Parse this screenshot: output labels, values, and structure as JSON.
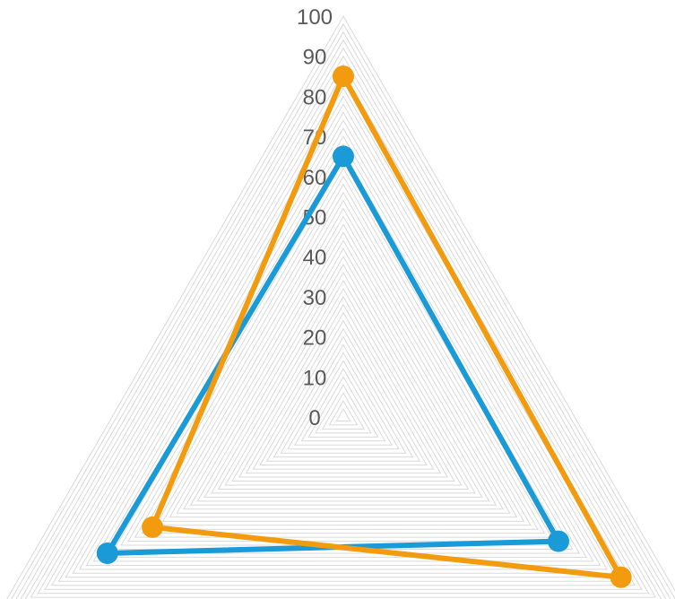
{
  "chart_data": {
    "type": "radar",
    "axes": [
      "",
      "",
      ""
    ],
    "rlim": [
      0,
      100
    ],
    "ticks": [
      0,
      10,
      20,
      30,
      40,
      50,
      60,
      70,
      80,
      90,
      100
    ],
    "grid": true,
    "series": [
      {
        "values": [
          65,
          62,
          68
        ],
        "color": "#1a9bd7"
      },
      {
        "values": [
          85,
          80,
          55
        ],
        "color": "#f29b0e"
      }
    ]
  }
}
